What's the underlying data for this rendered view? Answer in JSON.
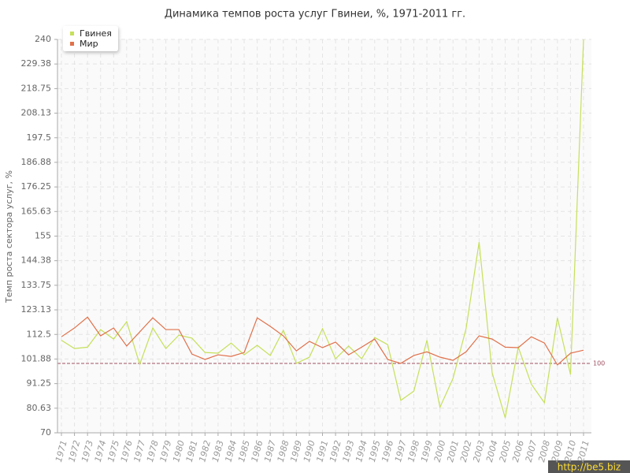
{
  "chart_data": {
    "type": "line",
    "title": "Динамика темпов роста услуг Гвинеи, %, 1971-2011 гг.",
    "y_label": "Темп роста сектора услуг, %",
    "categories": [
      "1971",
      "1972",
      "1973",
      "1974",
      "1975",
      "1976",
      "1977",
      "1978",
      "1979",
      "1980",
      "1981",
      "1982",
      "1983",
      "1984",
      "1985",
      "1986",
      "1987",
      "1988",
      "1989",
      "1990",
      "1991",
      "1992",
      "1993",
      "1994",
      "1995",
      "1996",
      "1997",
      "1998",
      "1999",
      "2000",
      "2001",
      "2002",
      "2003",
      "2004",
      "2005",
      "2006",
      "2007",
      "2008",
      "2009",
      "2010",
      "2011"
    ],
    "series": [
      {
        "name": "Гвинея",
        "color": "#c5e05a",
        "values": [
          110,
          106.4,
          107,
          114.6,
          110.5,
          118,
          99.6,
          115.3,
          106.4,
          112.2,
          110.9,
          104.7,
          104.4,
          108.8,
          103.7,
          107.8,
          103.4,
          114.3,
          100,
          102.7,
          115,
          102,
          107.5,
          102,
          111.2,
          108.1,
          84,
          88,
          110,
          81,
          93.5,
          115,
          152.4,
          95.9,
          76.5,
          107,
          91,
          83,
          119.7,
          95.2,
          240
        ]
      },
      {
        "name": "Мир",
        "color": "#e0704a",
        "values": [
          111.5,
          115.3,
          120,
          111.9,
          115.3,
          107.5,
          113.6,
          119.7,
          114.6,
          114.6,
          104,
          101.7,
          103.7,
          103,
          104.7,
          119.7,
          116,
          111.9,
          105.4,
          109.5,
          106.8,
          109.2,
          103.7,
          107,
          110.5,
          101.7,
          100,
          103.4,
          105,
          102.7,
          101.3,
          105,
          111.9,
          110.5,
          107,
          106.8,
          111.5,
          108.8,
          99.3,
          104.4,
          105.7
        ]
      }
    ],
    "ylim": [
      70,
      240
    ],
    "yticks": [
      70,
      80.63,
      91.25,
      101.88,
      112.5,
      123.13,
      133.75,
      144.38,
      155,
      165.63,
      176.25,
      186.88,
      197.5,
      208.13,
      218.75,
      229.38,
      240
    ],
    "grid": true,
    "reference_line": {
      "value": 100,
      "color": "#a05060"
    },
    "legend": "top-left",
    "watermark": "http://be5.biz"
  }
}
